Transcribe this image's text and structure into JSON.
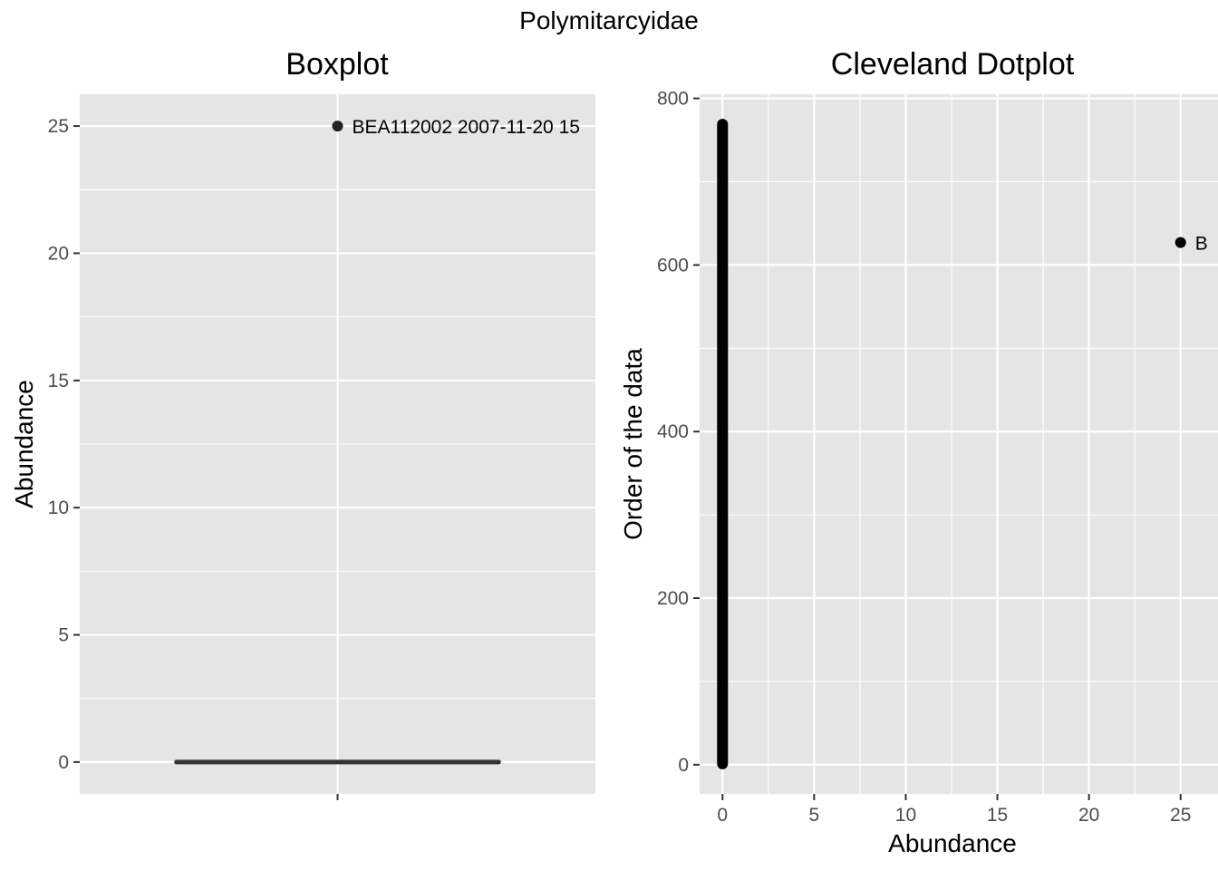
{
  "figure": {
    "title": "Polymitarcyidae"
  },
  "colors": {
    "panel_background": "#e5e5e5",
    "grid": "#ffffff",
    "points": "#000000",
    "box_median": "#333333",
    "tick_text": "#4d4d4d"
  },
  "chart_data": [
    {
      "type": "box",
      "title": "Boxplot",
      "xlabel": "",
      "ylabel": "Abundance",
      "ylim": [
        -1.25,
        26.25
      ],
      "yticks": [
        0,
        5,
        10,
        15,
        20,
        25
      ],
      "grid": true,
      "box": {
        "min": 0,
        "q1": 0,
        "median": 0,
        "q3": 0,
        "max": 0
      },
      "outliers": [
        {
          "value": 25,
          "label": "BEA112002 2007-11-20 15"
        }
      ]
    },
    {
      "type": "scatter",
      "title": "Cleveland Dotplot",
      "xlabel": "Abundance",
      "ylabel": "Order of the data",
      "xlim": [
        -1.25,
        26.25
      ],
      "ylim": [
        -35,
        805
      ],
      "xticks": [
        0,
        5,
        10,
        15,
        20,
        25
      ],
      "yticks": [
        0,
        200,
        400,
        600,
        800
      ],
      "grid": true,
      "zero_run": {
        "x": 0,
        "y_from": 1,
        "y_to": 769
      },
      "points": [
        {
          "x": 25,
          "y": 627,
          "label": "B"
        }
      ]
    }
  ]
}
